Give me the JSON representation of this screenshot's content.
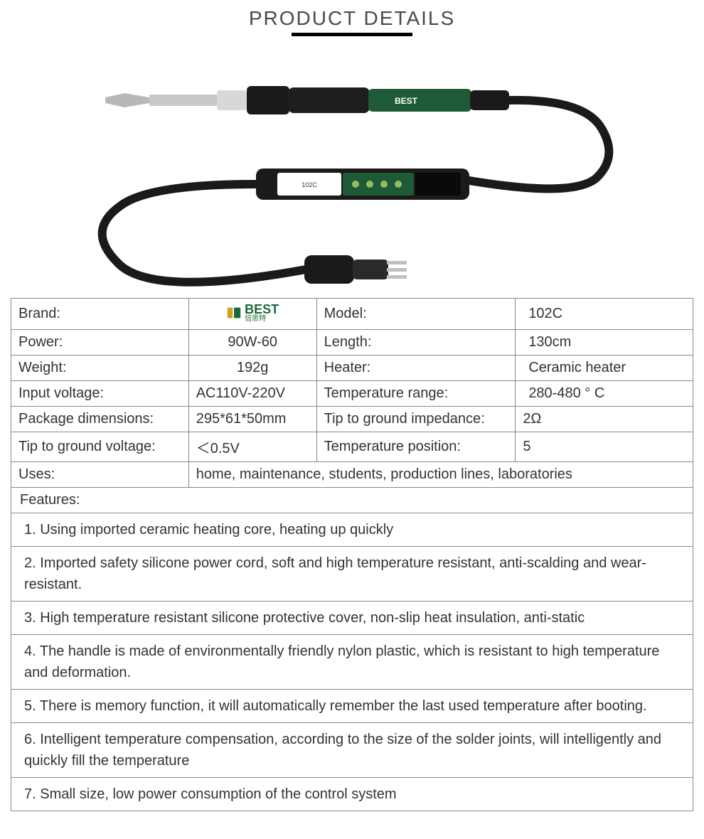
{
  "header": {
    "title": "PRODUCT DETAILS"
  },
  "brand_logo": {
    "text": "BEST",
    "sub": "倍思特"
  },
  "specs": {
    "rows": [
      {
        "k1": "Brand:",
        "v1": "__LOGO__",
        "k2": "Model:",
        "v2": "102C",
        "v1_align": "center",
        "v2_align": "left",
        "v2_pad": true
      },
      {
        "k1": "Power:",
        "v1": "90W-60",
        "k2": "Length:",
        "v2": "130cm",
        "v1_align": "center",
        "v2_align": "left",
        "v2_pad": true
      },
      {
        "k1": "Weight:",
        "v1": "192g",
        "k2": "Heater:",
        "v2": "Ceramic heater",
        "v1_align": "center",
        "v2_align": "left",
        "v2_pad": true
      },
      {
        "k1": "Input voltage:",
        "v1": "AC110V-220V",
        "k2": "Temperature range:",
        "v2": "280-480 ° C",
        "v1_align": "left",
        "v2_align": "left",
        "v2_pad": true
      },
      {
        "k1": "Package dimensions:",
        "v1": "295*61*50mm",
        "k2": "Tip to ground impedance:",
        "v2": "2Ω",
        "v1_align": "left",
        "v2_align": "left"
      },
      {
        "k1": "Tip to ground voltage:",
        "v1": "＜0.5V",
        "k2": "Temperature position:",
        "v2": " 5",
        "v1_align": "left",
        "v2_align": "left"
      }
    ],
    "uses_label": "Uses:",
    "uses_value": " home, maintenance, students, production lines, laboratories",
    "features_label": "Features:",
    "features": [
      "1. Using imported ceramic heating core, heating up quickly",
      "2. Imported safety silicone power cord, soft and high temperature resistant, anti-scalding and wear-resistant.",
      "3. High temperature resistant silicone protective cover, non-slip heat insulation, anti-static",
      "4. The handle is made of environmentally friendly nylon plastic, which is resistant to high temperature and deformation.",
      "5. There is memory function, it will automatically remember the last used temperature after booting.",
      "6. Intelligent temperature compensation, according to the size of the solder joints, will intelligently and quickly fill the temperature",
      "7. Small size, low power consumption of the control system"
    ]
  },
  "colors": {
    "border": "#888888",
    "text": "#333333",
    "header": "#4a4a4a",
    "logo_green": "#1a6b3a",
    "logo_yellow": "#d4a017"
  }
}
